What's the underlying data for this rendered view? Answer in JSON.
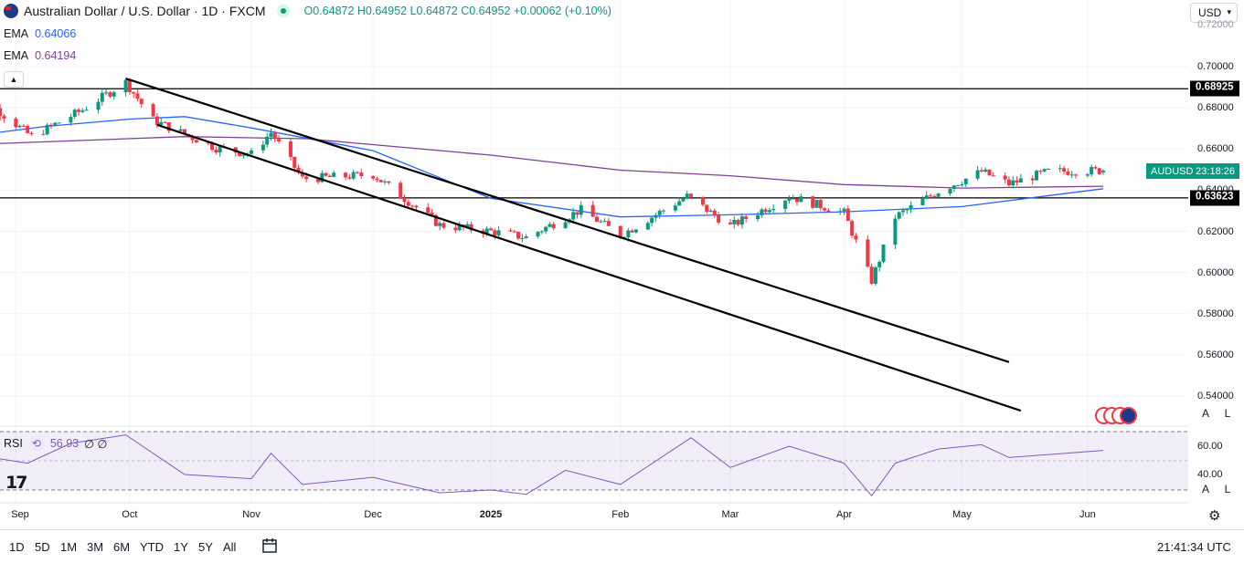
{
  "header": {
    "title": "Australian Dollar / U.S. Dollar · 1D · FXCM",
    "ohlc": "O0.64872 H0.64952 L0.64872 C0.64952 +0.00062 (+0.10%)"
  },
  "indicators": {
    "ema1": {
      "label": "EMA",
      "value": "0.64066",
      "color": "#2962ff"
    },
    "ema2": {
      "label": "EMA",
      "value": "0.64194",
      "color": "#7e3f98"
    },
    "rsi": {
      "label": "RSI",
      "value": "56.93",
      "extra": "∅ ∅",
      "color": "#7e57c2"
    }
  },
  "currency_button": "USD",
  "price_axis": {
    "ticks": [
      "0.70000",
      "0.68000",
      "0.66000",
      "0.64000",
      "0.62000",
      "0.60000",
      "0.58000",
      "0.56000",
      "0.54000"
    ],
    "top_partial": "0.72000",
    "tag_high": "0.68925",
    "tag_low": "0.63623",
    "symbol_tag": "AUDUSD",
    "countdown": "23:18:26",
    "auto_label": "A",
    "log_label": "L"
  },
  "rsi_axis": {
    "ticks": [
      "60.00",
      "40.00"
    ]
  },
  "time_axis": {
    "labels": [
      {
        "text": "Sep",
        "bold": false
      },
      {
        "text": "Oct",
        "bold": false
      },
      {
        "text": "Nov",
        "bold": false
      },
      {
        "text": "Dec",
        "bold": false
      },
      {
        "text": "2025",
        "bold": true
      },
      {
        "text": "Feb",
        "bold": false
      },
      {
        "text": "Mar",
        "bold": false
      },
      {
        "text": "Apr",
        "bold": false
      },
      {
        "text": "May",
        "bold": false
      },
      {
        "text": "Jun",
        "bold": false
      }
    ]
  },
  "bottom_bar": {
    "ranges": [
      "1D",
      "5D",
      "1M",
      "3M",
      "6M",
      "YTD",
      "1Y",
      "5Y",
      "All"
    ],
    "clock": "21:41:34 UTC"
  },
  "logo_text": "17",
  "colors": {
    "up": "#089981",
    "down": "#f23645",
    "rsi_band": "#7e57c2",
    "price_tag": "#000000"
  },
  "chart_data": {
    "type": "candlestick",
    "y_range": [
      0.535,
      0.72
    ],
    "horizontal_levels": [
      0.68925,
      0.63623
    ],
    "trendlines": [
      {
        "from": [
          "2024-09-30",
          0.6942
        ],
        "to": [
          "2025-05-13",
          0.5565
        ]
      },
      {
        "from": [
          "2024-10-08",
          0.6717
        ],
        "to": [
          "2025-05-16",
          0.5329
        ]
      }
    ],
    "month_markers": [
      "2024-09-02",
      "2024-10-01",
      "2024-11-01",
      "2024-12-02",
      "2025-01-01",
      "2025-02-03",
      "2025-03-03",
      "2025-04-01",
      "2025-05-01",
      "2025-06-02"
    ],
    "series": [
      {
        "name": "EMA",
        "kind": "line",
        "key": "ema1"
      },
      {
        "name": "EMA",
        "kind": "line",
        "key": "ema2"
      },
      {
        "name": "RSI",
        "kind": "line",
        "key": "rsi"
      }
    ],
    "ema_fast_points": [
      [
        "2024-08-20",
        0.666
      ],
      [
        "2024-09-10",
        0.671
      ],
      [
        "2024-10-01",
        0.6745
      ],
      [
        "2024-10-15",
        0.6757
      ],
      [
        "2024-11-01",
        0.6702
      ],
      [
        "2024-12-02",
        0.6592
      ],
      [
        "2025-01-01",
        0.636
      ],
      [
        "2025-02-03",
        0.627
      ],
      [
        "2025-03-03",
        0.628
      ],
      [
        "2025-04-01",
        0.6295
      ],
      [
        "2025-05-01",
        0.632
      ],
      [
        "2025-06-06",
        0.6407
      ]
    ],
    "ema_slow_points": [
      [
        "2024-08-20",
        0.662
      ],
      [
        "2024-10-15",
        0.666
      ],
      [
        "2024-11-15",
        0.665
      ],
      [
        "2025-01-01",
        0.657
      ],
      [
        "2025-02-03",
        0.6497
      ],
      [
        "2025-03-03",
        0.647
      ],
      [
        "2025-04-01",
        0.6427
      ],
      [
        "2025-05-01",
        0.641
      ],
      [
        "2025-06-06",
        0.6419
      ]
    ],
    "rsi_range": [
      20,
      80
    ],
    "rsi_levels": [
      70,
      30
    ],
    "rsi_points": [
      [
        "2024-08-20",
        55
      ],
      [
        "2024-09-05",
        48
      ],
      [
        "2024-09-16",
        62
      ],
      [
        "2024-09-30",
        68
      ],
      [
        "2024-10-15",
        40
      ],
      [
        "2024-11-01",
        37
      ],
      [
        "2024-11-06",
        55
      ],
      [
        "2024-11-14",
        33
      ],
      [
        "2024-12-02",
        38
      ],
      [
        "2024-12-19",
        27
      ],
      [
        "2025-01-01",
        29
      ],
      [
        "2025-01-10",
        26
      ],
      [
        "2025-01-20",
        43
      ],
      [
        "2025-02-03",
        33
      ],
      [
        "2025-02-21",
        66
      ],
      [
        "2025-03-03",
        45
      ],
      [
        "2025-03-18",
        60
      ],
      [
        "2025-04-01",
        48
      ],
      [
        "2025-04-08",
        25
      ],
      [
        "2025-04-14",
        48
      ],
      [
        "2025-04-25",
        58
      ],
      [
        "2025-05-06",
        61
      ],
      [
        "2025-05-13",
        52
      ],
      [
        "2025-06-06",
        57
      ]
    ],
    "ohlc_keyframes": [
      [
        "2024-08-20",
        0.672
      ],
      [
        "2024-08-28",
        0.6795
      ],
      [
        "2024-09-06",
        0.666
      ],
      [
        "2024-09-19",
        0.679
      ],
      [
        "2024-09-30",
        0.6925
      ],
      [
        "2024-10-07",
        0.674
      ],
      [
        "2024-10-23",
        0.6605
      ],
      [
        "2024-11-01",
        0.6575
      ],
      [
        "2024-11-06",
        0.668
      ],
      [
        "2024-11-14",
        0.6455
      ],
      [
        "2024-12-02",
        0.6475
      ],
      [
        "2024-12-19",
        0.623
      ],
      [
        "2025-01-01",
        0.62
      ],
      [
        "2025-01-10",
        0.617
      ],
      [
        "2025-01-24",
        0.6305
      ],
      [
        "2025-02-03",
        0.618
      ],
      [
        "2025-02-20",
        0.637
      ],
      [
        "2025-03-03",
        0.6225
      ],
      [
        "2025-03-18",
        0.637
      ],
      [
        "2025-04-01",
        0.629
      ],
      [
        "2025-04-08",
        0.596
      ],
      [
        "2025-04-14",
        0.627
      ],
      [
        "2025-04-25",
        0.6395
      ],
      [
        "2025-05-06",
        0.649
      ],
      [
        "2025-05-13",
        0.643
      ],
      [
        "2025-05-23",
        0.649
      ],
      [
        "2025-06-06",
        0.6495
      ]
    ],
    "last_candle": {
      "date": "2025-06-06",
      "open": 0.64872,
      "high": 0.64952,
      "low": 0.64872,
      "close": 0.64952
    }
  }
}
